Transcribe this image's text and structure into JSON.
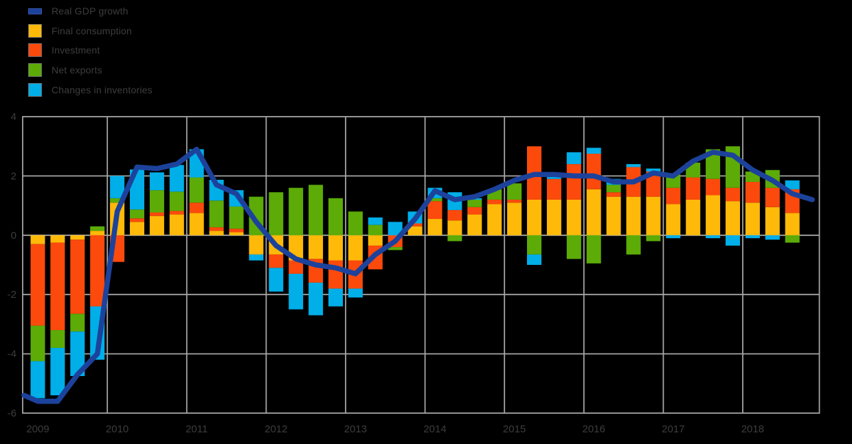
{
  "colors": {
    "background": "#000000",
    "gdp_line": "#1c429c",
    "consumption": "#ffb908",
    "investment": "#fb4a0c",
    "net_exports": "#5cab07",
    "inventories": "#00aee8",
    "grid": "#a6a6a6",
    "text": "#3d3d3d"
  },
  "legend": {
    "items": [
      {
        "label": "Real GDP growth",
        "color": "#1c429c",
        "marker": "line"
      },
      {
        "label": "Final consumption",
        "color": "#ffb908",
        "marker": "square"
      },
      {
        "label": "Investment",
        "color": "#fb4a0c",
        "marker": "square"
      },
      {
        "label": "Net exports",
        "color": "#5cab07",
        "marker": "square"
      },
      {
        "label": "Changes in inventories",
        "color": "#00aee8",
        "marker": "square"
      }
    ]
  },
  "chart_data": {
    "type": "bar",
    "subtype": "stacked contribution bars with overlaid line, percentage points",
    "title": "",
    "xlabel": "",
    "ylabel": "",
    "ylim": [
      -6,
      4
    ],
    "grid": true,
    "legend_position": "top-left",
    "y_tick_labels": [
      "4",
      "2",
      "0",
      "-2",
      "-4",
      "-6"
    ],
    "y_tick_values": [
      4,
      2,
      0,
      -2,
      -4,
      -6
    ],
    "x_tick_labels": [
      "2009",
      "2010",
      "2011",
      "2012",
      "2013",
      "2014",
      "2015",
      "2016",
      "2017",
      "2018"
    ],
    "categories": [
      "2009Q1",
      "2009Q2",
      "2009Q3",
      "2009Q4",
      "2010Q1",
      "2010Q2",
      "2010Q3",
      "2010Q4",
      "2011Q1",
      "2011Q2",
      "2011Q3",
      "2011Q4",
      "2012Q1",
      "2012Q2",
      "2012Q3",
      "2012Q4",
      "2013Q1",
      "2013Q2",
      "2013Q3",
      "2013Q4",
      "2014Q1",
      "2014Q2",
      "2014Q3",
      "2014Q4",
      "2015Q1",
      "2015Q2",
      "2015Q3",
      "2015Q4",
      "2016Q1",
      "2016Q2",
      "2016Q3",
      "2016Q4",
      "2017Q1",
      "2017Q2",
      "2017Q3",
      "2017Q4",
      "2018Q1",
      "2018Q2",
      "2018Q3"
    ],
    "series": [
      {
        "name": "Final consumption",
        "color": "#ffb908",
        "values": [
          -0.3,
          -0.25,
          -0.15,
          0.15,
          1.1,
          0.45,
          0.65,
          0.7,
          0.75,
          0.15,
          0.1,
          -0.65,
          -0.65,
          -0.85,
          -0.8,
          -0.85,
          -0.85,
          -0.35,
          0.0,
          0.3,
          0.55,
          0.5,
          0.7,
          1.05,
          1.1,
          1.2,
          1.2,
          1.2,
          1.55,
          1.3,
          1.3,
          1.3,
          1.05,
          1.2,
          1.35,
          1.15,
          1.1,
          0.95,
          0.75
        ]
      },
      {
        "name": "Investment",
        "color": "#fb4a0c",
        "values": [
          -2.75,
          -2.95,
          -2.5,
          -2.4,
          -0.9,
          0.12,
          0.12,
          0.12,
          0.35,
          0.12,
          0.12,
          0.0,
          -0.45,
          -0.45,
          -0.8,
          -0.95,
          -0.95,
          -0.8,
          -0.4,
          0.1,
          0.6,
          0.35,
          0.25,
          0.15,
          0.1,
          1.8,
          0.7,
          1.2,
          1.2,
          0.15,
          1.0,
          0.85,
          0.55,
          0.75,
          0.55,
          0.45,
          0.7,
          0.65,
          0.8
        ]
      },
      {
        "name": "Net exports",
        "color": "#5cab07",
        "values": [
          -1.2,
          -0.6,
          -0.6,
          0.15,
          0.15,
          0.3,
          0.75,
          0.65,
          0.85,
          0.9,
          0.75,
          1.3,
          1.45,
          1.6,
          1.7,
          1.25,
          0.8,
          0.35,
          -0.1,
          0.0,
          0.1,
          -0.2,
          0.25,
          0.35,
          0.55,
          -0.65,
          0.0,
          -0.8,
          -0.95,
          0.25,
          -0.65,
          -0.2,
          0.45,
          0.5,
          1.0,
          1.4,
          0.35,
          0.6,
          -0.25
        ]
      },
      {
        "name": "Changes in inventories",
        "color": "#00aee8",
        "values": [
          -1.25,
          -1.6,
          -1.5,
          -1.8,
          0.75,
          1.35,
          0.6,
          0.9,
          0.95,
          0.7,
          0.55,
          -0.2,
          -0.8,
          -1.2,
          -1.1,
          -0.6,
          -0.3,
          0.25,
          0.45,
          0.4,
          0.35,
          0.6,
          0.05,
          0.0,
          0.0,
          -0.35,
          0.1,
          0.4,
          0.2,
          0.2,
          0.1,
          0.1,
          -0.1,
          0.0,
          -0.1,
          -0.35,
          -0.1,
          -0.15,
          0.3
        ]
      }
    ],
    "line": {
      "name": "Real GDP growth",
      "color": "#1c429c",
      "note": "first point sits at the plot left edge, one quarter before the first bar; line extends one quarter beyond the last bar",
      "values": [
        -5.4,
        -5.6,
        -5.6,
        -4.7,
        -4.0,
        0.8,
        2.3,
        2.25,
        2.4,
        2.9,
        1.7,
        1.4,
        0.45,
        -0.35,
        -0.8,
        -1.0,
        -1.1,
        -1.3,
        -0.65,
        -0.2,
        0.55,
        1.5,
        1.2,
        1.3,
        1.55,
        1.85,
        2.05,
        2.05,
        2.0,
        2.0,
        1.8,
        1.8,
        2.1,
        2.0,
        2.5,
        2.8,
        2.7,
        2.2,
        1.85,
        1.4,
        1.2
      ]
    }
  }
}
